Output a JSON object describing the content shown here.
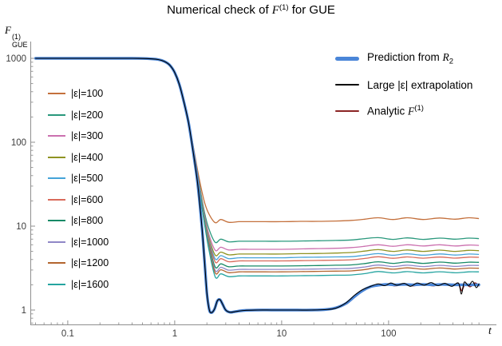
{
  "header": {
    "title_prefix": "Numerical check of ",
    "title_symbol": "F",
    "title_sup": "(1)",
    "title_suffix": " for GUE"
  },
  "axes": {
    "x_label": "t",
    "y_symbol": "F",
    "y_sup": "(1)",
    "y_sub": "GUE"
  },
  "chart_data": {
    "type": "line",
    "title": "Numerical check of F^(1) for GUE",
    "xlabel": "t",
    "ylabel": "F^(1)_GUE",
    "xscale": "log",
    "yscale": "log",
    "xlim": [
      0.05,
      800
    ],
    "ylim": [
      0.7,
      1500
    ],
    "grid": false,
    "xticks": [
      0.1,
      1,
      10,
      100
    ],
    "xtick_labels": [
      "0.1",
      "1",
      "10",
      "100"
    ],
    "yticks": [
      1,
      10,
      100,
      1000
    ],
    "ytick_labels": [
      "1",
      "10",
      "100",
      "1000"
    ],
    "eps_series": {
      "t": [
        0.05,
        0.2,
        0.4,
        0.55,
        0.7,
        0.8,
        0.9,
        1.0,
        1.1,
        1.2,
        1.35,
        1.5,
        1.7,
        1.9,
        2.1,
        2.4,
        2.7,
        3.2,
        4,
        5,
        7,
        10,
        15,
        22,
        32,
        45,
        60,
        80,
        110,
        150,
        210,
        300,
        420,
        560,
        700
      ],
      "series": [
        {
          "key": "eps-100",
          "label": "|ε|=100",
          "color": "#c4703c",
          "y": [
            1000,
            1000,
            999,
            995,
            970,
            921,
            832,
            684,
            506,
            338,
            179,
            85.5,
            36,
            19.2,
            13.8,
            11,
            12,
            11.1,
            11.3,
            11.3,
            11.3,
            11.3,
            11.4,
            11.4,
            11.5,
            11.7,
            12.1,
            12.6,
            12,
            12.6,
            12,
            12.5,
            12.1,
            12.6,
            12.3
          ]
        },
        {
          "key": "eps-200",
          "label": "|ε|=200",
          "color": "#29987c",
          "y": [
            1000,
            1000,
            999,
            995,
            970,
            921,
            831,
            682,
            503,
            334,
            175,
            81.1,
            31.4,
            14.5,
            9.1,
            6.4,
            7,
            6.5,
            6.6,
            6.6,
            6.6,
            6.6,
            6.65,
            6.7,
            6.75,
            6.85,
            7.1,
            7.3,
            6.95,
            7.25,
            6.95,
            7.2,
            7,
            7.2,
            7.1
          ]
        },
        {
          "key": "eps-300",
          "label": "|ε|=300",
          "color": "#cb70af",
          "y": [
            1000,
            1000,
            999,
            995,
            970,
            920,
            831,
            682,
            503,
            333,
            174,
            79.9,
            30.2,
            13.3,
            7.8,
            5.15,
            5.6,
            5.2,
            5.3,
            5.3,
            5.3,
            5.3,
            5.35,
            5.4,
            5.45,
            5.55,
            5.75,
            6,
            5.75,
            6,
            5.8,
            6,
            5.8,
            5.95,
            5.9
          ]
        },
        {
          "key": "eps-400",
          "label": "|ε|=400",
          "color": "#8f9322",
          "y": [
            1000,
            1000,
            999,
            995,
            970,
            920,
            831,
            681,
            502,
            333,
            174,
            79.3,
            29.5,
            12.6,
            7.1,
            4.5,
            4.9,
            4.55,
            4.65,
            4.65,
            4.65,
            4.65,
            4.7,
            4.72,
            4.78,
            4.85,
            5.05,
            5.25,
            5,
            5.2,
            5,
            5.18,
            5,
            5.15,
            5.1
          ]
        },
        {
          "key": "eps-500",
          "label": "|ε|=500",
          "color": "#45a3d9",
          "y": [
            1000,
            1000,
            999,
            995,
            970,
            920,
            831,
            681,
            502,
            333,
            173,
            78.9,
            29.1,
            12.2,
            6.7,
            4.05,
            4.45,
            4.1,
            4.2,
            4.2,
            4.2,
            4.2,
            4.25,
            4.27,
            4.3,
            4.33,
            4.5,
            4.7,
            4.5,
            4.68,
            4.5,
            4.66,
            4.52,
            4.65,
            4.6
          ]
        },
        {
          "key": "eps-600",
          "label": "|ε|=600",
          "color": "#d96a5a",
          "y": [
            1000,
            1000,
            999,
            995,
            970,
            920,
            830,
            681,
            502,
            332,
            173,
            78.6,
            28.8,
            11.8,
            6.35,
            3.72,
            4.1,
            3.77,
            3.85,
            3.85,
            3.85,
            3.85,
            3.88,
            3.9,
            3.93,
            3.97,
            4.12,
            4.32,
            4.14,
            4.3,
            4.15,
            4.28,
            4.16,
            4.27,
            4.25
          ]
        },
        {
          "key": "eps-800",
          "label": "|ε|=800",
          "color": "#178a66",
          "y": [
            1000,
            1000,
            999,
            995,
            970,
            920,
            830,
            681,
            501,
            332,
            173,
            78.1,
            28.3,
            11.3,
            5.85,
            3.24,
            3.55,
            3.28,
            3.35,
            3.35,
            3.35,
            3.35,
            3.37,
            3.39,
            3.42,
            3.45,
            3.58,
            3.76,
            3.6,
            3.74,
            3.6,
            3.73,
            3.62,
            3.72,
            3.7
          ]
        },
        {
          "key": "eps-1000",
          "label": "|ε|=1000",
          "color": "#8f87c7",
          "y": [
            1000,
            1000,
            999,
            995,
            970,
            920,
            830,
            681,
            501,
            332,
            172,
            77.8,
            28,
            11,
            5.55,
            2.95,
            3.23,
            2.99,
            3.05,
            3.05,
            3.05,
            3.05,
            3.07,
            3.09,
            3.11,
            3.14,
            3.26,
            3.44,
            3.3,
            3.42,
            3.3,
            3.41,
            3.31,
            3.4,
            3.4
          ]
        },
        {
          "key": "eps-1200",
          "label": "|ε|=1200",
          "color": "#b3652f",
          "y": [
            1000,
            1000,
            999,
            995,
            970,
            920,
            830,
            680,
            501,
            332,
            172,
            77.6,
            27.8,
            10.8,
            5.35,
            2.76,
            3.02,
            2.79,
            2.85,
            2.85,
            2.85,
            2.85,
            2.87,
            2.89,
            2.91,
            2.93,
            3.04,
            3.2,
            3.07,
            3.18,
            3.07,
            3.17,
            3.08,
            3.16,
            3.15
          ]
        },
        {
          "key": "eps-1600",
          "label": "|ε|=1600",
          "color": "#25a4a0",
          "y": [
            1000,
            1000,
            999,
            995,
            970,
            920,
            830,
            680,
            500,
            331,
            172,
            77.4,
            27.5,
            10.5,
            5.05,
            2.47,
            2.7,
            2.5,
            2.55,
            2.55,
            2.55,
            2.55,
            2.57,
            2.58,
            2.6,
            2.62,
            2.72,
            2.88,
            2.77,
            2.87,
            2.77,
            2.86,
            2.78,
            2.85,
            2.85
          ]
        }
      ]
    },
    "main_head": [
      [
        0.05,
        1000
      ],
      [
        0.2,
        1000
      ],
      [
        0.4,
        999
      ],
      [
        0.55,
        994
      ],
      [
        0.7,
        968
      ],
      [
        0.8,
        918
      ],
      [
        0.9,
        828
      ],
      [
        1,
        678
      ],
      [
        1.1,
        498
      ],
      [
        1.2,
        328
      ],
      [
        1.35,
        168
      ],
      [
        1.5,
        72
      ],
      [
        1.65,
        30
      ],
      [
        1.8,
        9.5
      ],
      [
        1.9,
        3.8
      ],
      [
        2,
        1.6
      ],
      [
        2.1,
        1.02
      ],
      [
        2.2,
        0.93
      ],
      [
        2.35,
        1.02
      ],
      [
        2.5,
        1.28
      ],
      [
        2.65,
        1.33
      ],
      [
        2.8,
        1.18
      ],
      [
        3,
        1
      ],
      [
        3.3,
        0.94
      ],
      [
        3.7,
        0.96
      ],
      [
        4.5,
        0.99
      ],
      [
        6,
        1
      ],
      [
        8,
        1
      ],
      [
        10,
        1
      ],
      [
        14,
        1
      ],
      [
        19,
        1
      ],
      [
        25,
        1.01
      ]
    ],
    "main_series": [
      {
        "key": "prediction-r2",
        "legend_prefix": "Prediction from ",
        "legend_symbol": "R",
        "legend_script": "2",
        "legend_script_pos": "sub",
        "color": "#4a86d8",
        "plot_width": 3.4,
        "swatch_height": 5,
        "tail": [
          [
            32,
            1.06
          ],
          [
            40,
            1.2
          ],
          [
            48,
            1.45
          ],
          [
            57,
            1.7
          ],
          [
            68,
            1.9
          ],
          [
            80,
            1.98
          ],
          [
            95,
            2.02
          ],
          [
            115,
            2
          ],
          [
            140,
            2.02
          ],
          [
            170,
            2
          ],
          [
            210,
            2.02
          ],
          [
            260,
            2
          ],
          [
            320,
            2.02
          ],
          [
            400,
            2
          ],
          [
            500,
            2
          ],
          [
            620,
            2
          ],
          [
            700,
            2
          ]
        ]
      },
      {
        "key": "large-eps-extrapolation",
        "legend_prefix": "Large |ε| extrapolation",
        "legend_symbol": "",
        "legend_script": "",
        "legend_script_pos": "",
        "color": "#000000",
        "plot_width": 1.1,
        "swatch_height": 2,
        "tail": [
          [
            32,
            1.05
          ],
          [
            40,
            1.22
          ],
          [
            48,
            1.5
          ],
          [
            57,
            1.75
          ],
          [
            68,
            1.92
          ],
          [
            80,
            2.05
          ],
          [
            92,
            1.95
          ],
          [
            105,
            2.1
          ],
          [
            120,
            1.98
          ],
          [
            140,
            2.08
          ],
          [
            160,
            1.92
          ],
          [
            185,
            2.1
          ],
          [
            215,
            1.98
          ],
          [
            250,
            2.12
          ],
          [
            290,
            1.95
          ],
          [
            335,
            2.08
          ],
          [
            390,
            1.92
          ],
          [
            450,
            2.1
          ],
          [
            480,
            1.55
          ],
          [
            510,
            2.15
          ],
          [
            560,
            1.95
          ],
          [
            610,
            2.2
          ],
          [
            660,
            1.85
          ],
          [
            700,
            2.05
          ]
        ]
      },
      {
        "key": "analytic-f1",
        "legend_prefix": "Analytic ",
        "legend_symbol": "F",
        "legend_script": "(1)",
        "legend_script_pos": "sup",
        "color": "#8b2424",
        "plot_width": 1.7,
        "swatch_height": 2,
        "tail": [
          [
            32,
            1.07
          ],
          [
            40,
            1.18
          ],
          [
            48,
            1.42
          ],
          [
            57,
            1.68
          ],
          [
            68,
            1.88
          ],
          [
            80,
            1.95
          ],
          [
            95,
            2.05
          ],
          [
            115,
            1.95
          ],
          [
            140,
            2.05
          ],
          [
            170,
            1.95
          ],
          [
            210,
            2.05
          ],
          [
            260,
            1.95
          ],
          [
            320,
            2.05
          ],
          [
            390,
            1.95
          ],
          [
            450,
            2.05
          ],
          [
            480,
            1.7
          ],
          [
            520,
            2.05
          ],
          [
            580,
            1.9
          ],
          [
            640,
            2.1
          ],
          [
            700,
            1.95
          ]
        ]
      }
    ]
  }
}
